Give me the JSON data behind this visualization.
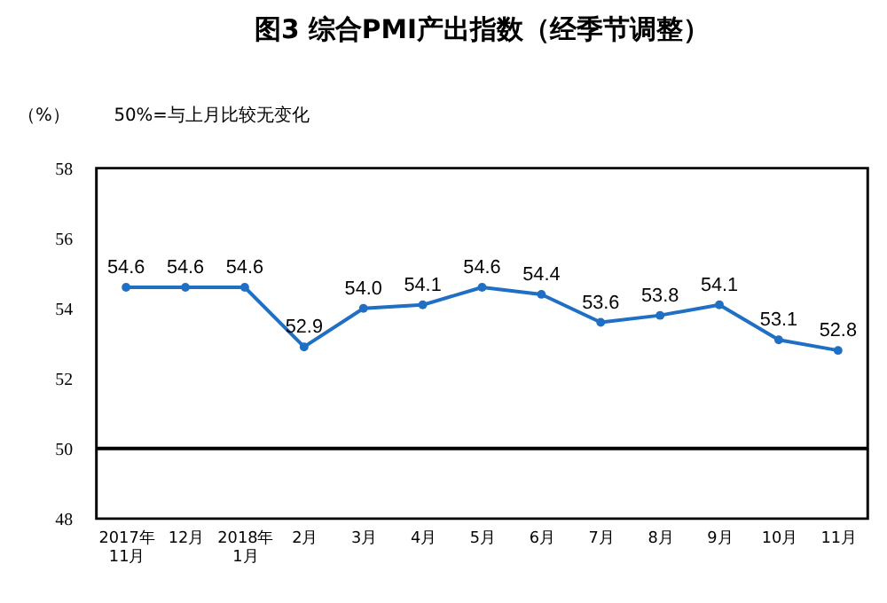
{
  "chart_data": {
    "type": "line",
    "title": "图3 综合PMI产出指数（经季节调整）",
    "ylabel": "（%）",
    "annotations": [
      "50%=与上月比较无变化"
    ],
    "categories": [
      "2017年\n11月",
      "12月",
      "2018年\n1月",
      "2月",
      "3月",
      "4月",
      "5月",
      "6月",
      "7月",
      "8月",
      "9月",
      "10月",
      "11月"
    ],
    "series": [
      {
        "color": "#1f6fc5",
        "values": [
          54.6,
          54.6,
          54.6,
          52.9,
          54.0,
          54.1,
          54.6,
          54.4,
          53.6,
          53.8,
          54.1,
          53.1,
          52.8
        ],
        "value_labels": [
          "54.6",
          "54.6",
          "54.6",
          "52.9",
          "54.0",
          "54.1",
          "54.6",
          "54.4",
          "53.6",
          "53.8",
          "54.1",
          "53.1",
          "52.8"
        ]
      }
    ],
    "ylim": [
      48,
      58
    ],
    "yticks": [
      48,
      50,
      52,
      54,
      56,
      58
    ],
    "ref_lines": [
      {
        "axis": "y",
        "value": 50,
        "color": "#000000"
      }
    ],
    "marker": "circle",
    "grid": false
  }
}
